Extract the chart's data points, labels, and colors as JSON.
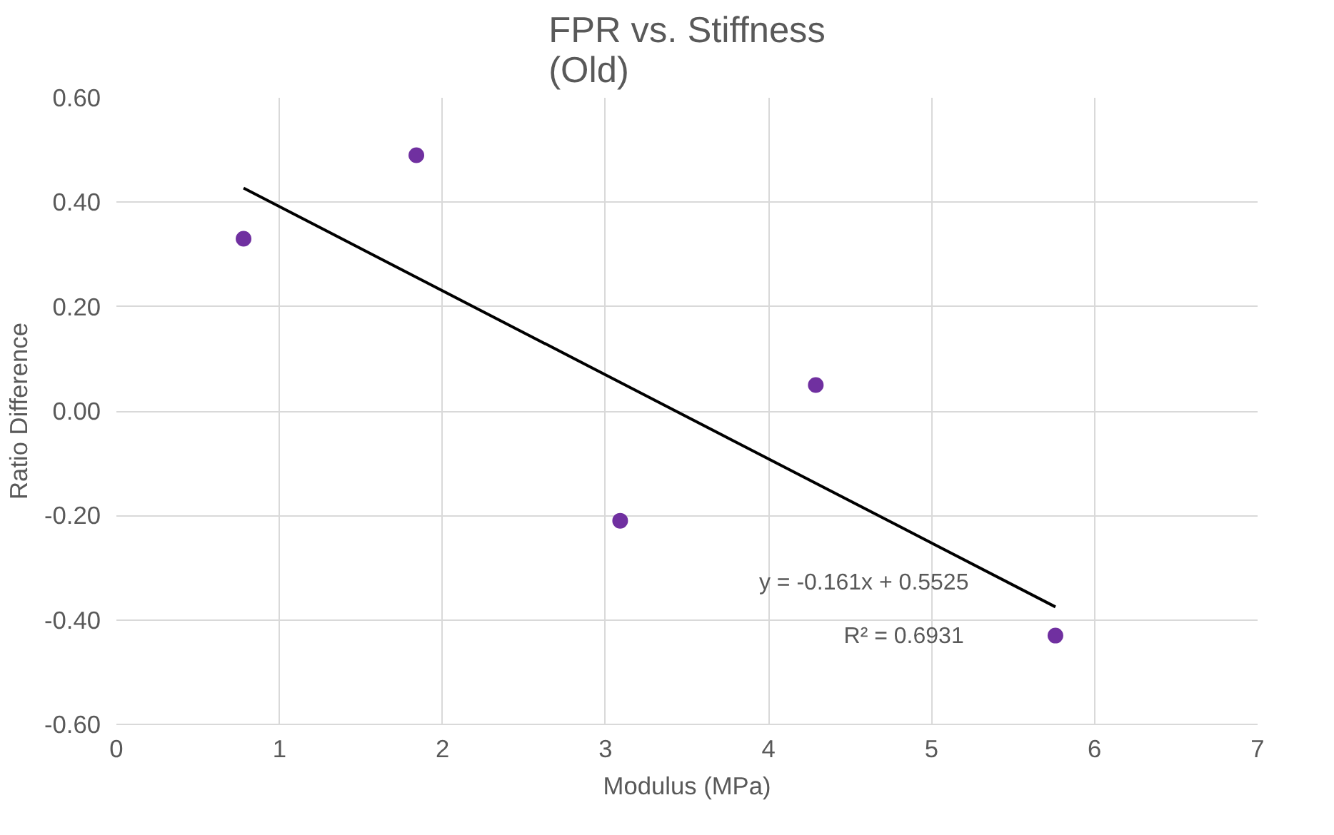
{
  "chart_data": {
    "type": "scatter",
    "title": "FPR vs. Stiffness\n(Old)",
    "xlabel": "Modulus (MPa)",
    "ylabel": "Ratio Difference",
    "xlim": [
      0,
      7
    ],
    "xticks": [
      0,
      1,
      2,
      3,
      4,
      5,
      6,
      7
    ],
    "ylim": [
      -0.6,
      0.6
    ],
    "yticks": [
      {
        "value": -0.6,
        "label": "-0.60"
      },
      {
        "value": -0.4,
        "label": "-0.40"
      },
      {
        "value": -0.2,
        "label": "-0.20"
      },
      {
        "value": 0,
        "label": "0.00"
      },
      {
        "value": 0.2,
        "label": "0.20"
      },
      {
        "value": 0.4,
        "label": "0.40"
      },
      {
        "value": 0.6,
        "label": "0.60"
      }
    ],
    "grid": true,
    "marker": "circle",
    "series": [
      {
        "color": "#7030a0",
        "x": [
          0.78,
          1.84,
          3.09,
          4.29,
          5.76
        ],
        "values": [
          0.33,
          0.49,
          -0.21,
          0.05,
          -0.43
        ]
      },
      {
        "type": "line",
        "color": "#000000",
        "line_style": "solid",
        "marker": "none",
        "x": [
          0.78,
          5.76
        ],
        "values": [
          0.427,
          -0.375
        ]
      }
    ],
    "annotations": [
      "y = -0.161x + 0.5525",
      "R² = 0.6931"
    ]
  }
}
